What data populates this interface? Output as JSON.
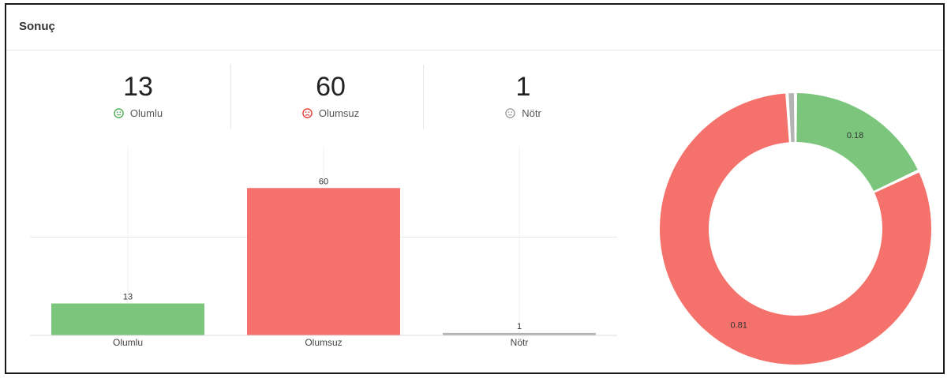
{
  "header": {
    "title": "Sonuç"
  },
  "stats": [
    {
      "value": "13",
      "label": "Olumlu",
      "icon": "smile-icon",
      "color": "#4caf50"
    },
    {
      "value": "60",
      "label": "Olumsuz",
      "icon": "frown-icon",
      "color": "#e53935"
    },
    {
      "value": "1",
      "label": "Nötr",
      "icon": "neutral-face-icon",
      "color": "#9e9e9e"
    }
  ],
  "chart_data": [
    {
      "type": "bar",
      "categories": [
        "Olumlu",
        "Olumsuz",
        "Nötr"
      ],
      "values": [
        13,
        60,
        1
      ],
      "data_labels": [
        "13",
        "60",
        "1"
      ],
      "colors": [
        "#7cc57c",
        "#f4726b",
        "#b3b3b3"
      ],
      "title": "",
      "xlabel": "",
      "ylabel": "",
      "ylim": [
        0,
        80
      ],
      "grid": true
    },
    {
      "type": "pie",
      "donut": true,
      "categories": [
        "Olumlu",
        "Olumsuz",
        "Nötr"
      ],
      "values": [
        0.18,
        0.81,
        0.01
      ],
      "data_labels": [
        "0.18",
        "0.81",
        ""
      ],
      "colors": [
        "#7cc57c",
        "#f4726b",
        "#b3b3b3"
      ]
    }
  ]
}
